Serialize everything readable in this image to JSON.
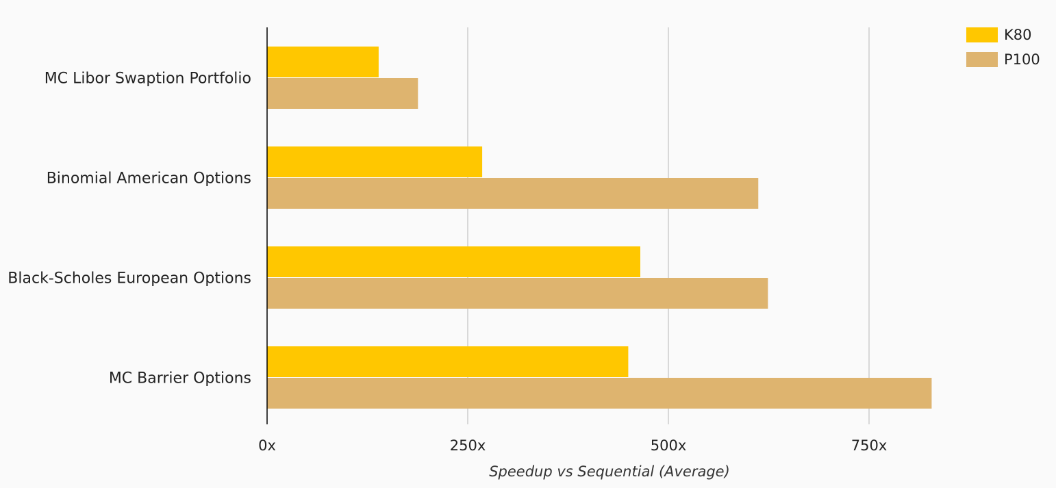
{
  "chart_data": {
    "type": "bar",
    "orientation": "horizontal",
    "categories": [
      "MC Libor Swaption Portfolio",
      "Binomial American Options",
      "Black-Scholes European Options",
      "MC Barrier Options"
    ],
    "series": [
      {
        "name": "K80",
        "color": "#ffc700",
        "values": [
          139,
          268,
          465,
          450
        ]
      },
      {
        "name": "P100",
        "color": "#deb46f",
        "values": [
          188,
          612,
          624,
          828
        ]
      }
    ],
    "title": "",
    "xlabel": "Speedup vs Sequential (Average)",
    "ylabel": "",
    "xlim": [
      0,
      1000
    ],
    "xticks": [
      0,
      250,
      500,
      750
    ],
    "xtick_labels": [
      "0x",
      "250x",
      "500x",
      "750x"
    ],
    "grid": "vertical",
    "legend_position": "top-right",
    "colors": {
      "background": "#fafafa",
      "gridline": "#cccccc",
      "axis": "#000000"
    }
  }
}
